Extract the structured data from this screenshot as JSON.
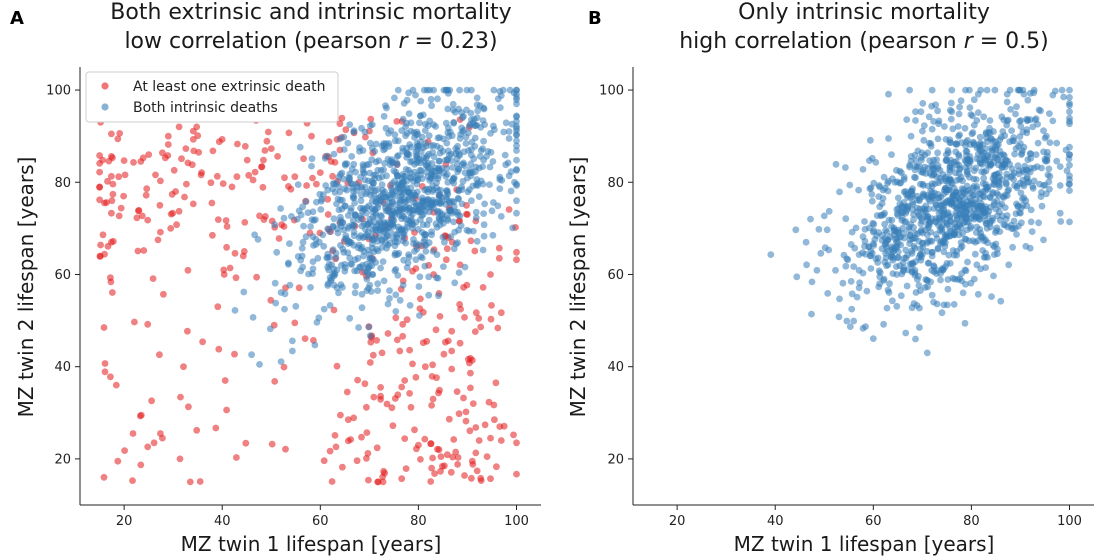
{
  "chart_data": [
    {
      "panel": "A",
      "type": "scatter",
      "title_line1": "Both extrinsic and intrinsic mortality",
      "title_line2_prefix": "low correlation (pearson ",
      "title_line2_r": "r",
      "title_line2_suffix": " = 0.23)",
      "xlabel": "MZ twin 1 lifespan [years]",
      "ylabel": "MZ twin 2 lifespan [years]",
      "xlim": [
        11,
        105
      ],
      "ylim": [
        10,
        105
      ],
      "xticks": [
        20,
        40,
        60,
        80,
        100
      ],
      "yticks": [
        20,
        40,
        60,
        80,
        100
      ],
      "grid": false,
      "legend": "top-left",
      "series": [
        {
          "name": "At least one extrinsic death",
          "color": "#e41a1c",
          "generator": {
            "seed": 11,
            "count": 460,
            "mode": "extrinsic"
          }
        },
        {
          "name": "Both intrinsic deaths",
          "color": "#377eb8",
          "generator": {
            "seed": 23,
            "count": 1050,
            "mode": "intrinsic",
            "mean": 76,
            "sd": 11,
            "r": 0.5
          }
        }
      ]
    },
    {
      "panel": "B",
      "type": "scatter",
      "title_line1": "Only intrinsic mortality",
      "title_line2_prefix": "high correlation (pearson ",
      "title_line2_r": "r",
      "title_line2_suffix": " = 0.5)",
      "xlabel": "MZ twin 1 lifespan [years]",
      "ylabel": "MZ twin 2 lifespan [years]",
      "xlim": [
        11,
        105
      ],
      "ylim": [
        10,
        105
      ],
      "xticks": [
        20,
        40,
        60,
        80,
        100
      ],
      "yticks": [
        20,
        40,
        60,
        80,
        100
      ],
      "grid": false,
      "legend": "none",
      "series": [
        {
          "name": "",
          "color": "#377eb8",
          "generator": {
            "seed": 37,
            "count": 1150,
            "mode": "intrinsic",
            "mean": 76,
            "sd": 11,
            "r": 0.5
          }
        }
      ]
    }
  ]
}
